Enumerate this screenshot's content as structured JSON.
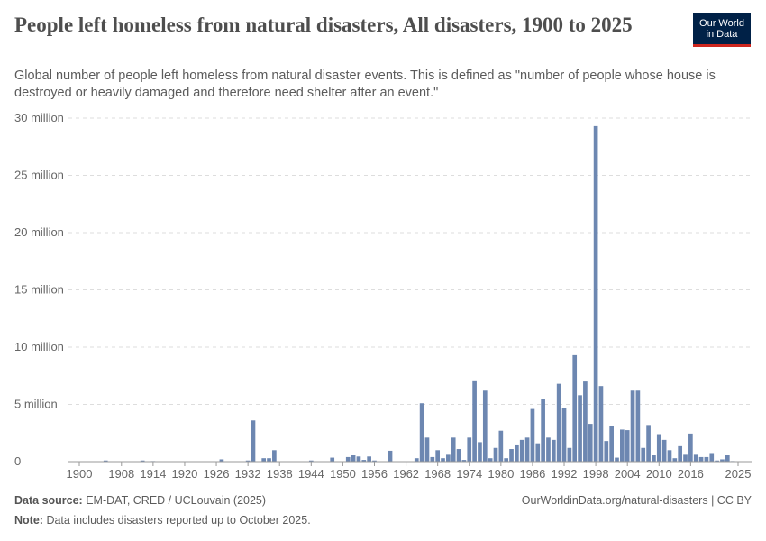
{
  "title": "People left homeless from natural disasters, All disasters, 1900 to 2025",
  "subtitle": "Global number of people left homeless from natural disaster events. This is defined as \"number of people whose house is destroyed or heavily damaged and therefore need shelter after an event.\"",
  "logo": {
    "line1": "Our World",
    "line2": "in Data",
    "bg": "#002147",
    "accent": "#ce261e"
  },
  "footer": {
    "source_label": "Data source:",
    "source": "EM-DAT, CRED / UCLouvain (2025)",
    "note_label": "Note:",
    "note": "Data includes disasters reported up to October 2025.",
    "url": "OurWorldinData.org/natural-disasters | CC BY"
  },
  "chart_data": {
    "type": "bar",
    "bar_color": "#6d87b1",
    "grid": true,
    "ylim": [
      0,
      30000000
    ],
    "y_ticks": [
      {
        "v": 0,
        "label": "0"
      },
      {
        "v": 5000000,
        "label": "5 million"
      },
      {
        "v": 10000000,
        "label": "10 million"
      },
      {
        "v": 15000000,
        "label": "15 million"
      },
      {
        "v": 20000000,
        "label": "20 million"
      },
      {
        "v": 25000000,
        "label": "25 million"
      },
      {
        "v": 30000000,
        "label": "30 million"
      }
    ],
    "x_ticks": [
      1900,
      1908,
      1914,
      1920,
      1926,
      1932,
      1938,
      1944,
      1950,
      1956,
      1962,
      1968,
      1974,
      1980,
      1986,
      1992,
      1998,
      2004,
      2010,
      2016,
      2025
    ],
    "x_range": [
      1900,
      2025
    ],
    "values_millions": {
      "1905": 0.1,
      "1906": 0.02,
      "1907": 0.02,
      "1912": 0.1,
      "1914": 0.05,
      "1927": 0.2,
      "1932": 0.1,
      "1933": 3.6,
      "1935": 0.3,
      "1936": 0.3,
      "1937": 1.0,
      "1944": 0.1,
      "1948": 0.35,
      "1951": 0.4,
      "1952": 0.55,
      "1953": 0.45,
      "1954": 0.15,
      "1955": 0.45,
      "1956": 0.1,
      "1959": 0.95,
      "1964": 0.3,
      "1965": 5.1,
      "1966": 2.1,
      "1967": 0.4,
      "1968": 1.0,
      "1969": 0.3,
      "1970": 0.6,
      "1971": 2.1,
      "1972": 1.1,
      "1973": 0.15,
      "1974": 2.1,
      "1975": 7.1,
      "1976": 1.7,
      "1977": 6.2,
      "1978": 0.3,
      "1979": 1.2,
      "1980": 2.7,
      "1981": 0.3,
      "1982": 1.1,
      "1983": 1.5,
      "1984": 1.9,
      "1985": 2.1,
      "1986": 4.6,
      "1987": 1.6,
      "1988": 5.5,
      "1989": 2.1,
      "1990": 1.9,
      "1991": 6.8,
      "1992": 4.7,
      "1993": 1.2,
      "1994": 9.3,
      "1995": 5.8,
      "1996": 7.0,
      "1997": 3.3,
      "1998": 29.3,
      "1999": 6.6,
      "2000": 1.8,
      "2001": 3.1,
      "2002": 0.35,
      "2003": 2.8,
      "2004": 2.75,
      "2005": 6.2,
      "2006": 6.2,
      "2007": 1.2,
      "2008": 3.2,
      "2009": 0.55,
      "2010": 2.4,
      "2011": 1.9,
      "2012": 1.0,
      "2013": 0.3,
      "2014": 1.35,
      "2015": 0.6,
      "2016": 2.45,
      "2017": 0.6,
      "2018": 0.4,
      "2019": 0.4,
      "2020": 0.75,
      "2021": 0.1,
      "2022": 0.2,
      "2023": 0.55,
      "2024": 0.05,
      "2025": 0.02
    }
  }
}
